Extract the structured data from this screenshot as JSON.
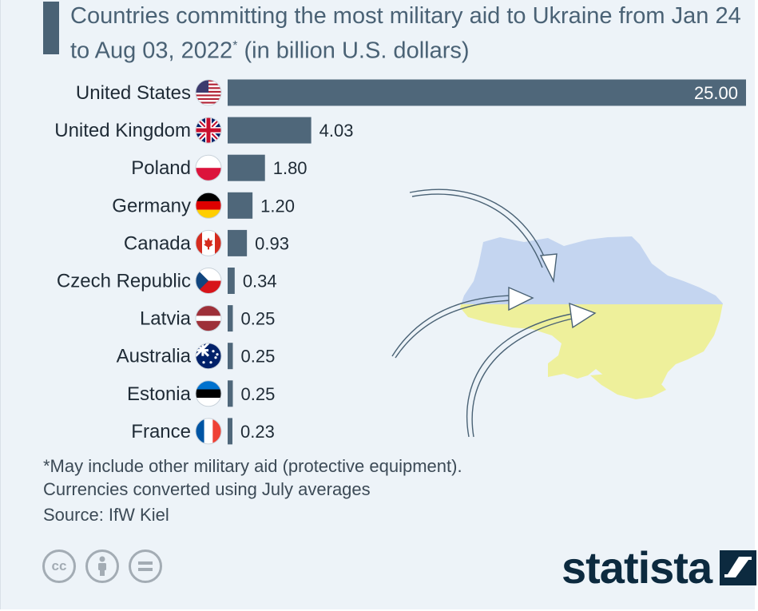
{
  "title_text": "Countries committing the most military aid to Ukraine from Jan 24 to Aug 03, 2022",
  "title_mark": "*",
  "title_unit": " (in billion U.S. dollars)",
  "notes": {
    "footnote": "*May include other military aid (protective equipment).",
    "conversion": "Currencies converted using July averages",
    "source": "Source: IfW Kiel"
  },
  "logo": {
    "text": "statista"
  },
  "icons": [
    "creative-commons-icon",
    "attribution-icon",
    "no-derivatives-icon"
  ],
  "colors": {
    "bar": "#4f677a",
    "background": "#edf3f8",
    "map_blue": "#c4d5f0",
    "map_yellow": "#eef09b",
    "arrow": "#4a6275"
  },
  "chart_data": {
    "type": "bar",
    "orientation": "horizontal",
    "categories": [
      "United States",
      "United Kingdom",
      "Poland",
      "Germany",
      "Canada",
      "Czech Republic",
      "Latvia",
      "Australia",
      "Estonia",
      "France"
    ],
    "values": [
      25.0,
      4.03,
      1.8,
      1.2,
      0.93,
      0.34,
      0.25,
      0.25,
      0.25,
      0.23
    ],
    "value_labels": [
      "25.00",
      "4.03",
      "1.80",
      "1.20",
      "0.93",
      "0.34",
      "0.25",
      "0.25",
      "0.25",
      "0.23"
    ],
    "flags": [
      "us-flag-icon",
      "uk-flag-icon",
      "poland-flag-icon",
      "germany-flag-icon",
      "canada-flag-icon",
      "czech-flag-icon",
      "latvia-flag-icon",
      "australia-flag-icon",
      "estonia-flag-icon",
      "france-flag-icon"
    ],
    "xlim": [
      0,
      25
    ],
    "grid": false,
    "legend": "none"
  }
}
